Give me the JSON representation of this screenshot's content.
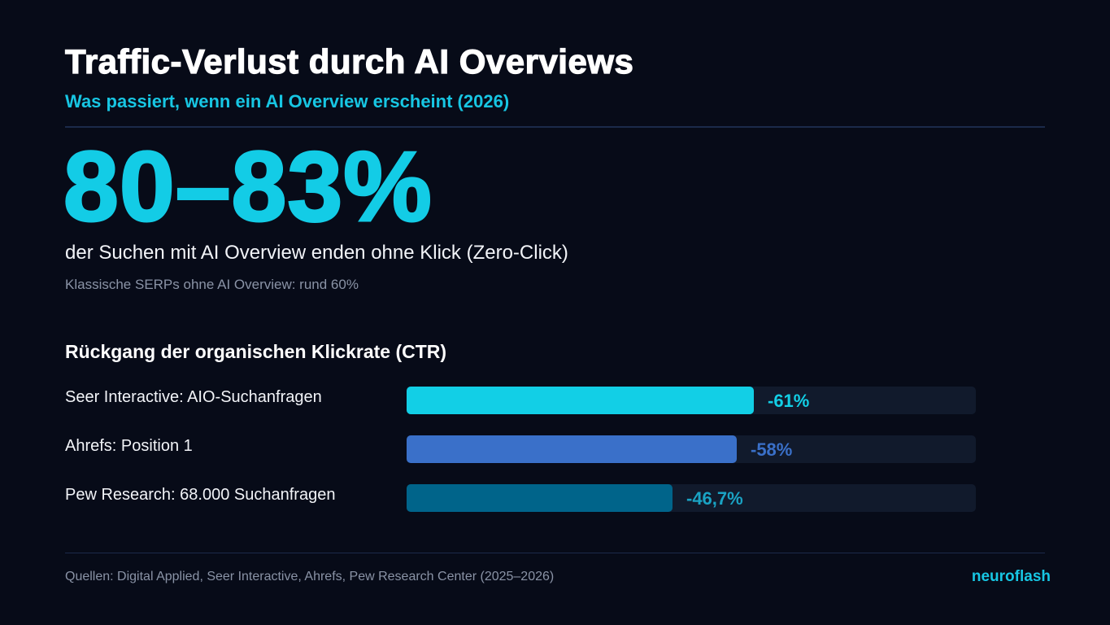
{
  "header": {
    "title": "Traffic-Verlust durch AI Overviews",
    "subtitle": "Was passiert, wenn ein AI Overview erscheint (2026)"
  },
  "highlight": {
    "stat": "80–83%",
    "description": "der Suchen mit AI Overview enden ohne Klick (Zero-Click)",
    "note": "Klassische SERPs ohne AI Overview: rund 60%"
  },
  "chart_data": {
    "type": "bar",
    "orientation": "horizontal",
    "title": "Rückgang der organischen Klickrate (CTR)",
    "categories": [
      "Seer Interactive: AIO-Suchanfragen",
      "Ahrefs: Position 1",
      "Pew Research: 68.000 Suchanfragen"
    ],
    "values": [
      -61,
      -58,
      -46.7
    ],
    "value_labels": [
      "-61%",
      "-58%",
      "-46,7%"
    ],
    "colors": [
      "#12cfe6",
      "#3a70c9",
      "#00648a"
    ],
    "label_colors": [
      "#12cfe6",
      "#3a70c9",
      "#1aa3c4"
    ],
    "track_color": "#111a2c",
    "xlim": [
      0,
      100
    ],
    "grid": false
  },
  "footer": {
    "sources": "Quellen: Digital Applied, Seer Interactive, Ahrefs, Pew Research Center (2025–2026)",
    "brand": "neuroflash"
  },
  "colors": {
    "background": "#070b18",
    "accent": "#17c6e3",
    "text": "#ffffff",
    "muted": "#8a93a6",
    "divider": "#1b2a4a"
  }
}
